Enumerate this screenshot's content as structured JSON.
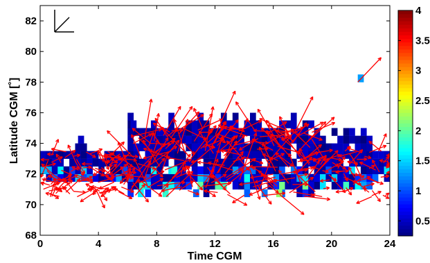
{
  "chart_data": {
    "type": "heatmap",
    "xlabel": "Time CGM",
    "ylabel": "Latitude CGM [˚]",
    "xlim": [
      0,
      24
    ],
    "ylim": [
      68,
      83
    ],
    "xticks": [
      "0",
      "4",
      "8",
      "12",
      "16",
      "20",
      "24"
    ],
    "yticks": [
      "68",
      "70",
      "72",
      "74",
      "76",
      "78",
      "80",
      "82"
    ],
    "colorbar": {
      "clim": [
        0.25,
        4
      ],
      "ticks": [
        "0.5",
        "1",
        "1.5",
        "2",
        "2.5",
        "3",
        "3.5",
        "4"
      ],
      "colormap": "jet"
    },
    "grid": false,
    "reference_vector": "top-left",
    "cell_size": {
      "time": 0.4,
      "lat": 0.5
    },
    "notable_cells": [
      {
        "t": 21.8,
        "lat": 78.0,
        "value": 1.3
      },
      {
        "t": 6.2,
        "lat": 75.0,
        "value": 0.5
      },
      {
        "t": 2.6,
        "lat": 74.0,
        "value": 0.5
      },
      {
        "t": 6.7,
        "lat": 70.5,
        "value": 1.6
      },
      {
        "t": 16.2,
        "lat": 70.5,
        "value": 2.2
      },
      {
        "t": 10.5,
        "lat": 70.5,
        "value": 1.1
      },
      {
        "t": 12.0,
        "lat": 71.0,
        "value": 2.0
      },
      {
        "t": 9.0,
        "lat": 72.0,
        "value": 1.8
      }
    ],
    "vector_series": {
      "name": "",
      "color": "#ff0000",
      "isolated_vector": {
        "t0": 21.8,
        "lat0": 78.0,
        "t1": 23.4,
        "lat1": 79.6
      }
    }
  }
}
